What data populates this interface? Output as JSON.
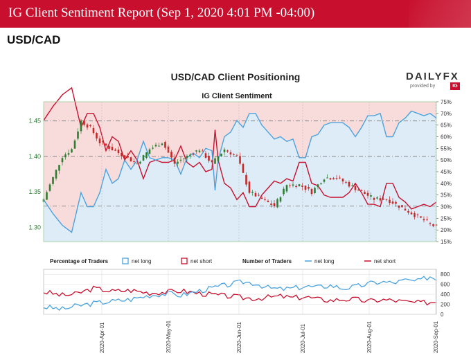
{
  "header": {
    "title": "IG Client Sentiment Report (Sep 1, 2020 4:01 PM -04:00)"
  },
  "pair": "USD/CAD",
  "logo": {
    "brand": "DAILYFX",
    "provided_by": "provided by",
    "ig": "IG"
  },
  "colors": {
    "banner": "#c8102e",
    "net_long": "#4aa3df",
    "net_short": "#c8102e",
    "candle_up": "#2e7d32",
    "candle_down": "#c62828",
    "short_zone": "#f8dcdc",
    "long_zone": "#ddecf7"
  },
  "chart_data": [
    {
      "type": "line",
      "title": "USD/CAD Client Positioning",
      "subtitle": "IG Client Sentiment",
      "left_axis": {
        "ticks": [
          "1.45",
          "1.40",
          "1.35",
          "1.30"
        ],
        "ylim": [
          1.28,
          1.477
        ]
      },
      "right_axis": {
        "ticks": [
          "75%",
          "70%",
          "65%",
          "60%",
          "55%",
          "50%",
          "45%",
          "40%",
          "35%",
          "30%",
          "25%",
          "20%",
          "15%"
        ],
        "ylim": [
          15,
          75
        ]
      },
      "x_ticks": [
        "2020-Apr-01",
        "2020-May-01",
        "2020-Jun-01",
        "2020-Jul-01",
        "2020-Aug-01",
        "2020-Sep-01"
      ],
      "reference_lines": [
        1.45,
        1.4,
        1.33
      ],
      "price_anchors": [
        [
          0,
          1.34
        ],
        [
          3,
          1.37
        ],
        [
          6,
          1.4
        ],
        [
          9,
          1.41
        ],
        [
          12,
          1.45
        ],
        [
          15,
          1.44
        ],
        [
          18,
          1.42
        ],
        [
          22,
          1.41
        ],
        [
          26,
          1.4
        ],
        [
          30,
          1.39
        ],
        [
          34,
          1.41
        ],
        [
          38,
          1.42
        ],
        [
          42,
          1.39
        ],
        [
          46,
          1.4
        ],
        [
          50,
          1.41
        ],
        [
          54,
          1.39
        ],
        [
          58,
          1.41
        ],
        [
          62,
          1.4
        ],
        [
          66,
          1.35
        ],
        [
          70,
          1.34
        ],
        [
          74,
          1.33
        ],
        [
          78,
          1.36
        ],
        [
          82,
          1.36
        ],
        [
          86,
          1.35
        ],
        [
          90,
          1.37
        ],
        [
          94,
          1.37
        ],
        [
          98,
          1.36
        ],
        [
          102,
          1.35
        ],
        [
          106,
          1.34
        ],
        [
          110,
          1.34
        ],
        [
          114,
          1.33
        ],
        [
          118,
          1.32
        ],
        [
          122,
          1.31
        ],
        [
          126,
          1.3
        ]
      ],
      "series": [
        {
          "name": "net long",
          "anchors": [
            [
              0,
              33
            ],
            [
              3,
              27
            ],
            [
              6,
              22
            ],
            [
              9,
              19
            ],
            [
              12,
              36
            ],
            [
              14,
              30
            ],
            [
              16,
              30
            ],
            [
              18,
              36
            ],
            [
              20,
              46
            ],
            [
              22,
              40
            ],
            [
              24,
              42
            ],
            [
              26,
              50
            ],
            [
              28,
              46
            ],
            [
              30,
              50
            ],
            [
              32,
              58
            ],
            [
              34,
              51
            ],
            [
              36,
              50
            ],
            [
              38,
              51
            ],
            [
              40,
              51
            ],
            [
              42,
              50
            ],
            [
              44,
              44
            ],
            [
              46,
              51
            ],
            [
              48,
              53
            ],
            [
              50,
              51
            ],
            [
              52,
              55
            ],
            [
              54,
              54
            ],
            [
              55,
              37
            ],
            [
              56,
              50
            ],
            [
              58,
              60
            ],
            [
              60,
              62
            ],
            [
              62,
              67
            ],
            [
              64,
              64
            ],
            [
              66,
              70
            ],
            [
              68,
              70
            ],
            [
              70,
              65
            ],
            [
              72,
              62
            ],
            [
              74,
              59
            ],
            [
              76,
              60
            ],
            [
              78,
              58
            ],
            [
              80,
              59
            ],
            [
              82,
              51
            ],
            [
              84,
              51
            ],
            [
              86,
              60
            ],
            [
              88,
              61
            ],
            [
              90,
              65
            ],
            [
              92,
              66
            ],
            [
              94,
              66
            ],
            [
              96,
              66
            ],
            [
              98,
              64
            ],
            [
              100,
              60
            ],
            [
              102,
              64
            ],
            [
              104,
              69
            ],
            [
              106,
              69
            ],
            [
              108,
              70
            ],
            [
              110,
              60
            ],
            [
              112,
              60
            ],
            [
              114,
              66
            ],
            [
              116,
              68
            ],
            [
              118,
              71
            ],
            [
              120,
              70
            ],
            [
              122,
              69
            ],
            [
              124,
              70
            ],
            [
              126,
              68
            ]
          ]
        },
        {
          "name": "net short",
          "anchors": [
            [
              0,
              67
            ],
            [
              3,
              73
            ],
            [
              6,
              78
            ],
            [
              9,
              81
            ],
            [
              12,
              64
            ],
            [
              14,
              70
            ],
            [
              16,
              70
            ],
            [
              18,
              64
            ],
            [
              20,
              54
            ],
            [
              22,
              60
            ],
            [
              24,
              58
            ],
            [
              26,
              50
            ],
            [
              28,
              54
            ],
            [
              30,
              50
            ],
            [
              32,
              42
            ],
            [
              34,
              49
            ],
            [
              36,
              50
            ],
            [
              38,
              49
            ],
            [
              40,
              49
            ],
            [
              42,
              50
            ],
            [
              44,
              56
            ],
            [
              46,
              49
            ],
            [
              48,
              47
            ],
            [
              50,
              49
            ],
            [
              52,
              45
            ],
            [
              54,
              46
            ],
            [
              55,
              63
            ],
            [
              56,
              50
            ],
            [
              58,
              40
            ],
            [
              60,
              38
            ],
            [
              62,
              33
            ],
            [
              64,
              36
            ],
            [
              66,
              30
            ],
            [
              68,
              30
            ],
            [
              70,
              35
            ],
            [
              72,
              38
            ],
            [
              74,
              41
            ],
            [
              76,
              40
            ],
            [
              78,
              42
            ],
            [
              80,
              41
            ],
            [
              82,
              49
            ],
            [
              84,
              49
            ],
            [
              86,
              40
            ],
            [
              88,
              39
            ],
            [
              90,
              35
            ],
            [
              92,
              34
            ],
            [
              94,
              34
            ],
            [
              96,
              34
            ],
            [
              98,
              36
            ],
            [
              100,
              40
            ],
            [
              102,
              36
            ],
            [
              104,
              31
            ],
            [
              106,
              31
            ],
            [
              108,
              30
            ],
            [
              110,
              40
            ],
            [
              112,
              40
            ],
            [
              114,
              34
            ],
            [
              116,
              32
            ],
            [
              118,
              29
            ],
            [
              120,
              30
            ],
            [
              122,
              31
            ],
            [
              124,
              30
            ],
            [
              126,
              32
            ]
          ]
        }
      ]
    },
    {
      "type": "line",
      "title": "Number of Traders",
      "legend_pct_title": "Percentage of Traders",
      "legend": [
        "net long",
        "net short"
      ],
      "y_ticks": [
        "800",
        "600",
        "400",
        "200",
        "0"
      ],
      "ylim": [
        0,
        900
      ],
      "series": [
        {
          "name": "net long",
          "anchors": [
            [
              0,
              150
            ],
            [
              6,
              100
            ],
            [
              10,
              160
            ],
            [
              16,
              220
            ],
            [
              22,
              260
            ],
            [
              28,
              300
            ],
            [
              34,
              380
            ],
            [
              40,
              420
            ],
            [
              44,
              380
            ],
            [
              50,
              470
            ],
            [
              56,
              550
            ],
            [
              60,
              600
            ],
            [
              64,
              650
            ],
            [
              68,
              620
            ],
            [
              72,
              530
            ],
            [
              76,
              500
            ],
            [
              80,
              520
            ],
            [
              84,
              560
            ],
            [
              88,
              540
            ],
            [
              92,
              580
            ],
            [
              96,
              520
            ],
            [
              100,
              550
            ],
            [
              104,
              610
            ],
            [
              108,
              650
            ],
            [
              112,
              630
            ],
            [
              116,
              680
            ],
            [
              120,
              660
            ],
            [
              124,
              760
            ],
            [
              126,
              700
            ]
          ]
        },
        {
          "name": "net short",
          "anchors": [
            [
              0,
              450
            ],
            [
              6,
              380
            ],
            [
              10,
              400
            ],
            [
              16,
              520
            ],
            [
              22,
              460
            ],
            [
              28,
              480
            ],
            [
              34,
              430
            ],
            [
              40,
              450
            ],
            [
              44,
              470
            ],
            [
              50,
              420
            ],
            [
              56,
              380
            ],
            [
              60,
              360
            ],
            [
              64,
              330
            ],
            [
              68,
              320
            ],
            [
              72,
              340
            ],
            [
              76,
              360
            ],
            [
              80,
              330
            ],
            [
              84,
              350
            ],
            [
              88,
              300
            ],
            [
              92,
              280
            ],
            [
              96,
              300
            ],
            [
              100,
              300
            ],
            [
              104,
              260
            ],
            [
              108,
              290
            ],
            [
              112,
              280
            ],
            [
              116,
              250
            ],
            [
              120,
              230
            ],
            [
              124,
              240
            ],
            [
              126,
              250
            ]
          ]
        }
      ]
    }
  ]
}
